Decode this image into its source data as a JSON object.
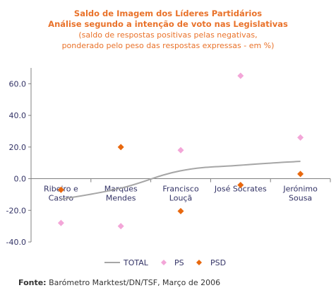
{
  "titles": {
    "line1": "Saldo de Imagem dos Líderes Partidários",
    "line2": "Análise segundo a intenção de voto nas Legislativas",
    "line3": "(saldo de respostas positivas pelas negativas,",
    "line4": "ponderado pelo peso das respostas expressas - em %)"
  },
  "source": {
    "label": "Fonte:",
    "text": "Barómetro Marktest/DN/TSF, Março de 2006"
  },
  "colors": {
    "total": "#a6a6a6",
    "ps": "#f3a6d8",
    "psd": "#e8680e",
    "axis": "#808080",
    "text": "#333366"
  },
  "chart_data": {
    "type": "scatter",
    "categories": [
      [
        "Ribeiro e",
        "Castro"
      ],
      [
        "Marques",
        "Mendes"
      ],
      [
        "Francisco",
        "Louçã"
      ],
      [
        "José Sócrates"
      ],
      [
        "Jerónimo",
        "Sousa"
      ]
    ],
    "y_ticks": [
      "60.0",
      "40.0",
      "20.0",
      "0.0",
      "-20.0",
      "-40.0"
    ],
    "ylim": [
      -40,
      70
    ],
    "series": [
      {
        "name": "TOTAL",
        "kind": "line",
        "values": [
          -13,
          -6,
          5,
          8.5,
          11
        ]
      },
      {
        "name": "PS",
        "kind": "marker",
        "values": [
          -28,
          -30,
          18,
          65,
          26
        ]
      },
      {
        "name": "PSD",
        "kind": "marker",
        "values": [
          -7,
          20,
          -20.5,
          -4,
          3
        ]
      }
    ],
    "legend_position": "bottom"
  }
}
